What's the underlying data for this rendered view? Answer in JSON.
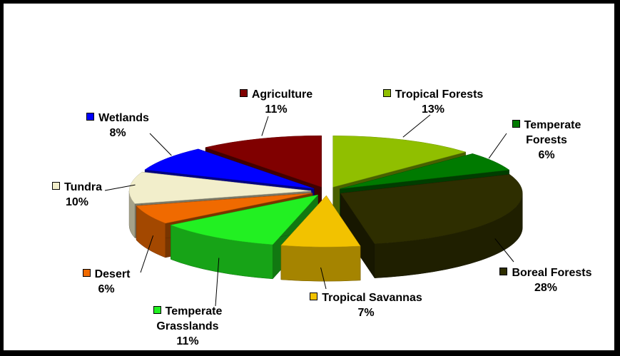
{
  "chart_data": {
    "type": "pie",
    "categories": [
      "Tropical Forests",
      "Temperate Forests",
      "Boreal Forests",
      "Tropical Savannas",
      "Temperate Grasslands",
      "Desert",
      "Tundra",
      "Wetlands",
      "Agriculture"
    ],
    "values": [
      13,
      6,
      28,
      7,
      11,
      6,
      10,
      8,
      11
    ],
    "value_labels": [
      "13%",
      "6%",
      "28%",
      "7%",
      "11%",
      "6%",
      "10%",
      "8%",
      "11%"
    ],
    "colors": [
      "#90bf00",
      "#007a00",
      "#2e2e00",
      "#f2c200",
      "#22f022",
      "#f06a00",
      "#f2eecb",
      "#0000ff",
      "#800000"
    ]
  }
}
